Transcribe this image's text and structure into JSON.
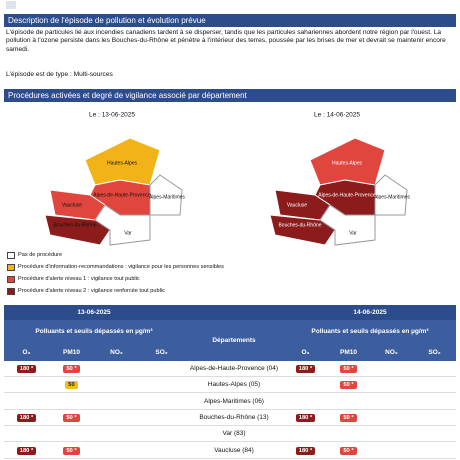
{
  "description": {
    "title": "Description de l'épisode de pollution et évolution prévue",
    "text": "L'épisode de particules lié aux incendies canadiens tardent à se disperser, tandis que les particules sahariennes abordent notre région par l'ouest. La pollution à l'ozone persiste dans les Bouches-du-Rhône et pénètre à l'intérieur des terres, poussée par les brises de mer et devrait se maintenir encore samedi.",
    "type_line": "L'épisode est de type : Multi-sources"
  },
  "procedures": {
    "title": "Procédures activées et degré de vigilance associé par département",
    "maps": [
      {
        "date": "Le : 13-06-2025",
        "labels": [
          "Hautes-Alpes",
          "Alpes-de-Haute-Provence",
          "Alpes-Maritimes",
          "Vaucluse",
          "Bouches-du-Rhône",
          "Var"
        ]
      },
      {
        "date": "Le : 14-06-2025",
        "labels": [
          "Hautes-Alpes",
          "Alpes-de-Haute-Provence",
          "Alpes-Maritimes",
          "Vaucluse",
          "Bouches-du-Rhône",
          "Var"
        ]
      }
    ],
    "legend": [
      "Pas de procédure",
      "Procédure d'information-recommandations : vigilance pour les personnes sensibles",
      "Procédure d'alerte niveau 1 : vigilance tout public",
      "Procédure d'alerte niveau 2 : vigilance renforcée tout public"
    ]
  },
  "table": {
    "dates": [
      "13-06-2025",
      "14-06-2025"
    ],
    "pollutants_header": "Polluants et seuils dépassés en µg/m³",
    "departments_header": "Départements",
    "pollutants": [
      "O₃",
      "PM10",
      "NO₂",
      "SO₂"
    ],
    "rows": [
      {
        "department": "Alpes-de-Haute-Provence (04)",
        "day1": [
          "180 *",
          "50 *",
          null,
          null
        ],
        "day2": [
          "180 *",
          "50 *",
          null,
          null
        ]
      },
      {
        "department": "Hautes-Alpes (05)",
        "day1": [
          null,
          "50",
          null,
          null
        ],
        "day2": [
          null,
          "50 *",
          null,
          null
        ]
      },
      {
        "department": "Alpes-Maritimes (06)",
        "day1": [
          null,
          null,
          null,
          null
        ],
        "day2": [
          null,
          null,
          null,
          null
        ]
      },
      {
        "department": "Bouches-du-Rhône (13)",
        "day1": [
          "180 *",
          "50 *",
          null,
          null
        ],
        "day2": [
          "180 *",
          "50 *",
          null,
          null
        ]
      },
      {
        "department": "Var (83)",
        "day1": [
          null,
          null,
          null,
          null
        ],
        "day2": [
          null,
          null,
          null,
          null
        ]
      },
      {
        "department": "Vaucluse (84)",
        "day1": [
          "180 *",
          "50 *",
          null,
          null
        ],
        "day2": [
          "180 *",
          "50 *",
          null,
          null
        ]
      }
    ]
  }
}
